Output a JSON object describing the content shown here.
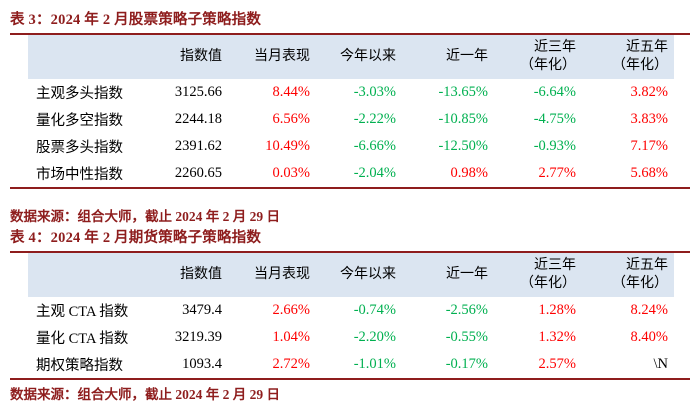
{
  "colors": {
    "dark_red": "#8e1d1d",
    "value_red": "#fe0000",
    "value_green": "#00b050",
    "header_bg": "#dbe5f1"
  },
  "tables": [
    {
      "id": "table3",
      "title": "表 3：2024 年 2 月股票策略子策略指数",
      "columns": [
        "",
        "指数值",
        "当月表现",
        "今年以来",
        "近一年",
        "近三年\n（年化）",
        "近五年\n（年化）"
      ],
      "rows": [
        {
          "label": "主观多头指数",
          "values": [
            {
              "text": "3125.66",
              "color": "black"
            },
            {
              "text": "8.44%",
              "color": "red"
            },
            {
              "text": "-3.03%",
              "color": "green"
            },
            {
              "text": "-13.65%",
              "color": "green"
            },
            {
              "text": "-6.64%",
              "color": "green"
            },
            {
              "text": "3.82%",
              "color": "red"
            }
          ]
        },
        {
          "label": "量化多空指数",
          "values": [
            {
              "text": "2244.18",
              "color": "black"
            },
            {
              "text": "6.56%",
              "color": "red"
            },
            {
              "text": "-2.22%",
              "color": "green"
            },
            {
              "text": "-10.85%",
              "color": "green"
            },
            {
              "text": "-4.75%",
              "color": "green"
            },
            {
              "text": "3.83%",
              "color": "red"
            }
          ]
        },
        {
          "label": "股票多头指数",
          "values": [
            {
              "text": "2391.62",
              "color": "black"
            },
            {
              "text": "10.49%",
              "color": "red"
            },
            {
              "text": "-6.66%",
              "color": "green"
            },
            {
              "text": "-12.50%",
              "color": "green"
            },
            {
              "text": "-0.93%",
              "color": "green"
            },
            {
              "text": "7.17%",
              "color": "red"
            }
          ]
        },
        {
          "label": "市场中性指数",
          "values": [
            {
              "text": "2260.65",
              "color": "black"
            },
            {
              "text": "0.03%",
              "color": "red"
            },
            {
              "text": "-2.04%",
              "color": "green"
            },
            {
              "text": "0.98%",
              "color": "red"
            },
            {
              "text": "2.77%",
              "color": "red"
            },
            {
              "text": "5.68%",
              "color": "red"
            }
          ]
        }
      ],
      "source": "数据来源：组合大师，截止 2024 年 2 月 29 日"
    },
    {
      "id": "table4",
      "title": "表 4：2024 年 2 月期货策略子策略指数",
      "columns": [
        "",
        "指数值",
        "当月表现",
        "今年以来",
        "近一年",
        "近三年\n（年化）",
        "近五年\n（年化）"
      ],
      "rows": [
        {
          "label": "主观 CTA 指数",
          "values": [
            {
              "text": "3479.4",
              "color": "black"
            },
            {
              "text": "2.66%",
              "color": "red"
            },
            {
              "text": "-0.74%",
              "color": "green"
            },
            {
              "text": "-2.56%",
              "color": "green"
            },
            {
              "text": "1.28%",
              "color": "red"
            },
            {
              "text": "8.24%",
              "color": "red"
            }
          ]
        },
        {
          "label": "量化 CTA 指数",
          "values": [
            {
              "text": "3219.39",
              "color": "black"
            },
            {
              "text": "1.04%",
              "color": "red"
            },
            {
              "text": "-2.20%",
              "color": "green"
            },
            {
              "text": "-0.55%",
              "color": "green"
            },
            {
              "text": "1.32%",
              "color": "red"
            },
            {
              "text": "8.40%",
              "color": "red"
            }
          ]
        },
        {
          "label": "期权策略指数",
          "values": [
            {
              "text": "1093.4",
              "color": "black"
            },
            {
              "text": "2.72%",
              "color": "red"
            },
            {
              "text": "-1.01%",
              "color": "green"
            },
            {
              "text": "-0.17%",
              "color": "green"
            },
            {
              "text": "2.57%",
              "color": "red"
            },
            {
              "text": "\\N",
              "color": "black"
            }
          ]
        }
      ],
      "source": "数据来源：组合大师，截止 2024 年 2 月 29 日"
    }
  ]
}
